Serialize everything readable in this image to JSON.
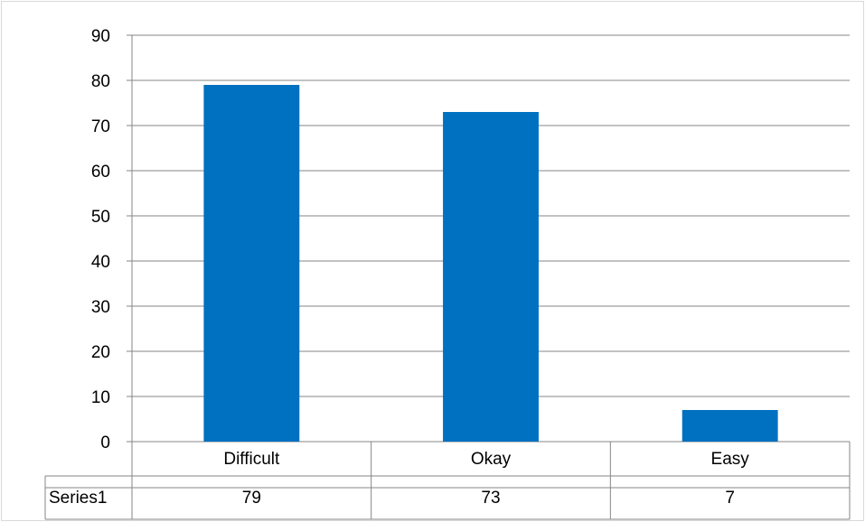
{
  "chart_data": {
    "type": "bar",
    "categories": [
      "Difficult",
      "Okay",
      "Easy"
    ],
    "series": [
      {
        "name": "Series1",
        "values": [
          79,
          73,
          7
        ]
      }
    ],
    "ylim": [
      0,
      90
    ],
    "yticks": [
      0,
      10,
      20,
      30,
      40,
      50,
      60,
      70,
      80,
      90
    ],
    "grid": true,
    "data_table": true,
    "colors": {
      "bar": "#0070c0",
      "gridline": "#868686",
      "frame": "#d9d9d9"
    }
  }
}
